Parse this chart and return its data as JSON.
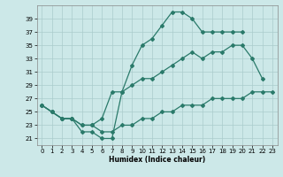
{
  "xlabel": "Humidex (Indice chaleur)",
  "bg_color": "#cce8e8",
  "grid_color": "#aacccc",
  "line_color": "#2a7a6a",
  "ylim": [
    20,
    41
  ],
  "xlim": [
    -0.5,
    23.5
  ],
  "yticks": [
    21,
    23,
    25,
    27,
    29,
    31,
    33,
    35,
    37,
    39
  ],
  "xticks": [
    0,
    1,
    2,
    3,
    4,
    5,
    6,
    7,
    8,
    9,
    10,
    11,
    12,
    13,
    14,
    15,
    16,
    17,
    18,
    19,
    20,
    21,
    22,
    23
  ],
  "line1_x": [
    0,
    1,
    2,
    3,
    4,
    5,
    6,
    7,
    8,
    9,
    10,
    11,
    12,
    13,
    14,
    15,
    16,
    17,
    18,
    19,
    20
  ],
  "line1_y": [
    26,
    25,
    24,
    24,
    22,
    22,
    21,
    21,
    28,
    32,
    35,
    36,
    38,
    40,
    40,
    39,
    37,
    37,
    37,
    37,
    37
  ],
  "line2_x": [
    0,
    1,
    2,
    3,
    4,
    5,
    6,
    7,
    8,
    9,
    10,
    11,
    12,
    13,
    14,
    15,
    16,
    17,
    18,
    19,
    20,
    21,
    22
  ],
  "line2_y": [
    26,
    25,
    24,
    24,
    23,
    23,
    24,
    28,
    28,
    29,
    30,
    30,
    31,
    32,
    33,
    34,
    33,
    34,
    34,
    35,
    35,
    33,
    30
  ],
  "line3_x": [
    0,
    1,
    2,
    3,
    4,
    5,
    6,
    7,
    8,
    9,
    10,
    11,
    12,
    13,
    14,
    15,
    16,
    17,
    18,
    19,
    20,
    21,
    22,
    23
  ],
  "line3_y": [
    26,
    25,
    24,
    24,
    23,
    23,
    22,
    22,
    23,
    23,
    24,
    24,
    25,
    25,
    26,
    26,
    26,
    27,
    27,
    27,
    27,
    28,
    28,
    28
  ]
}
